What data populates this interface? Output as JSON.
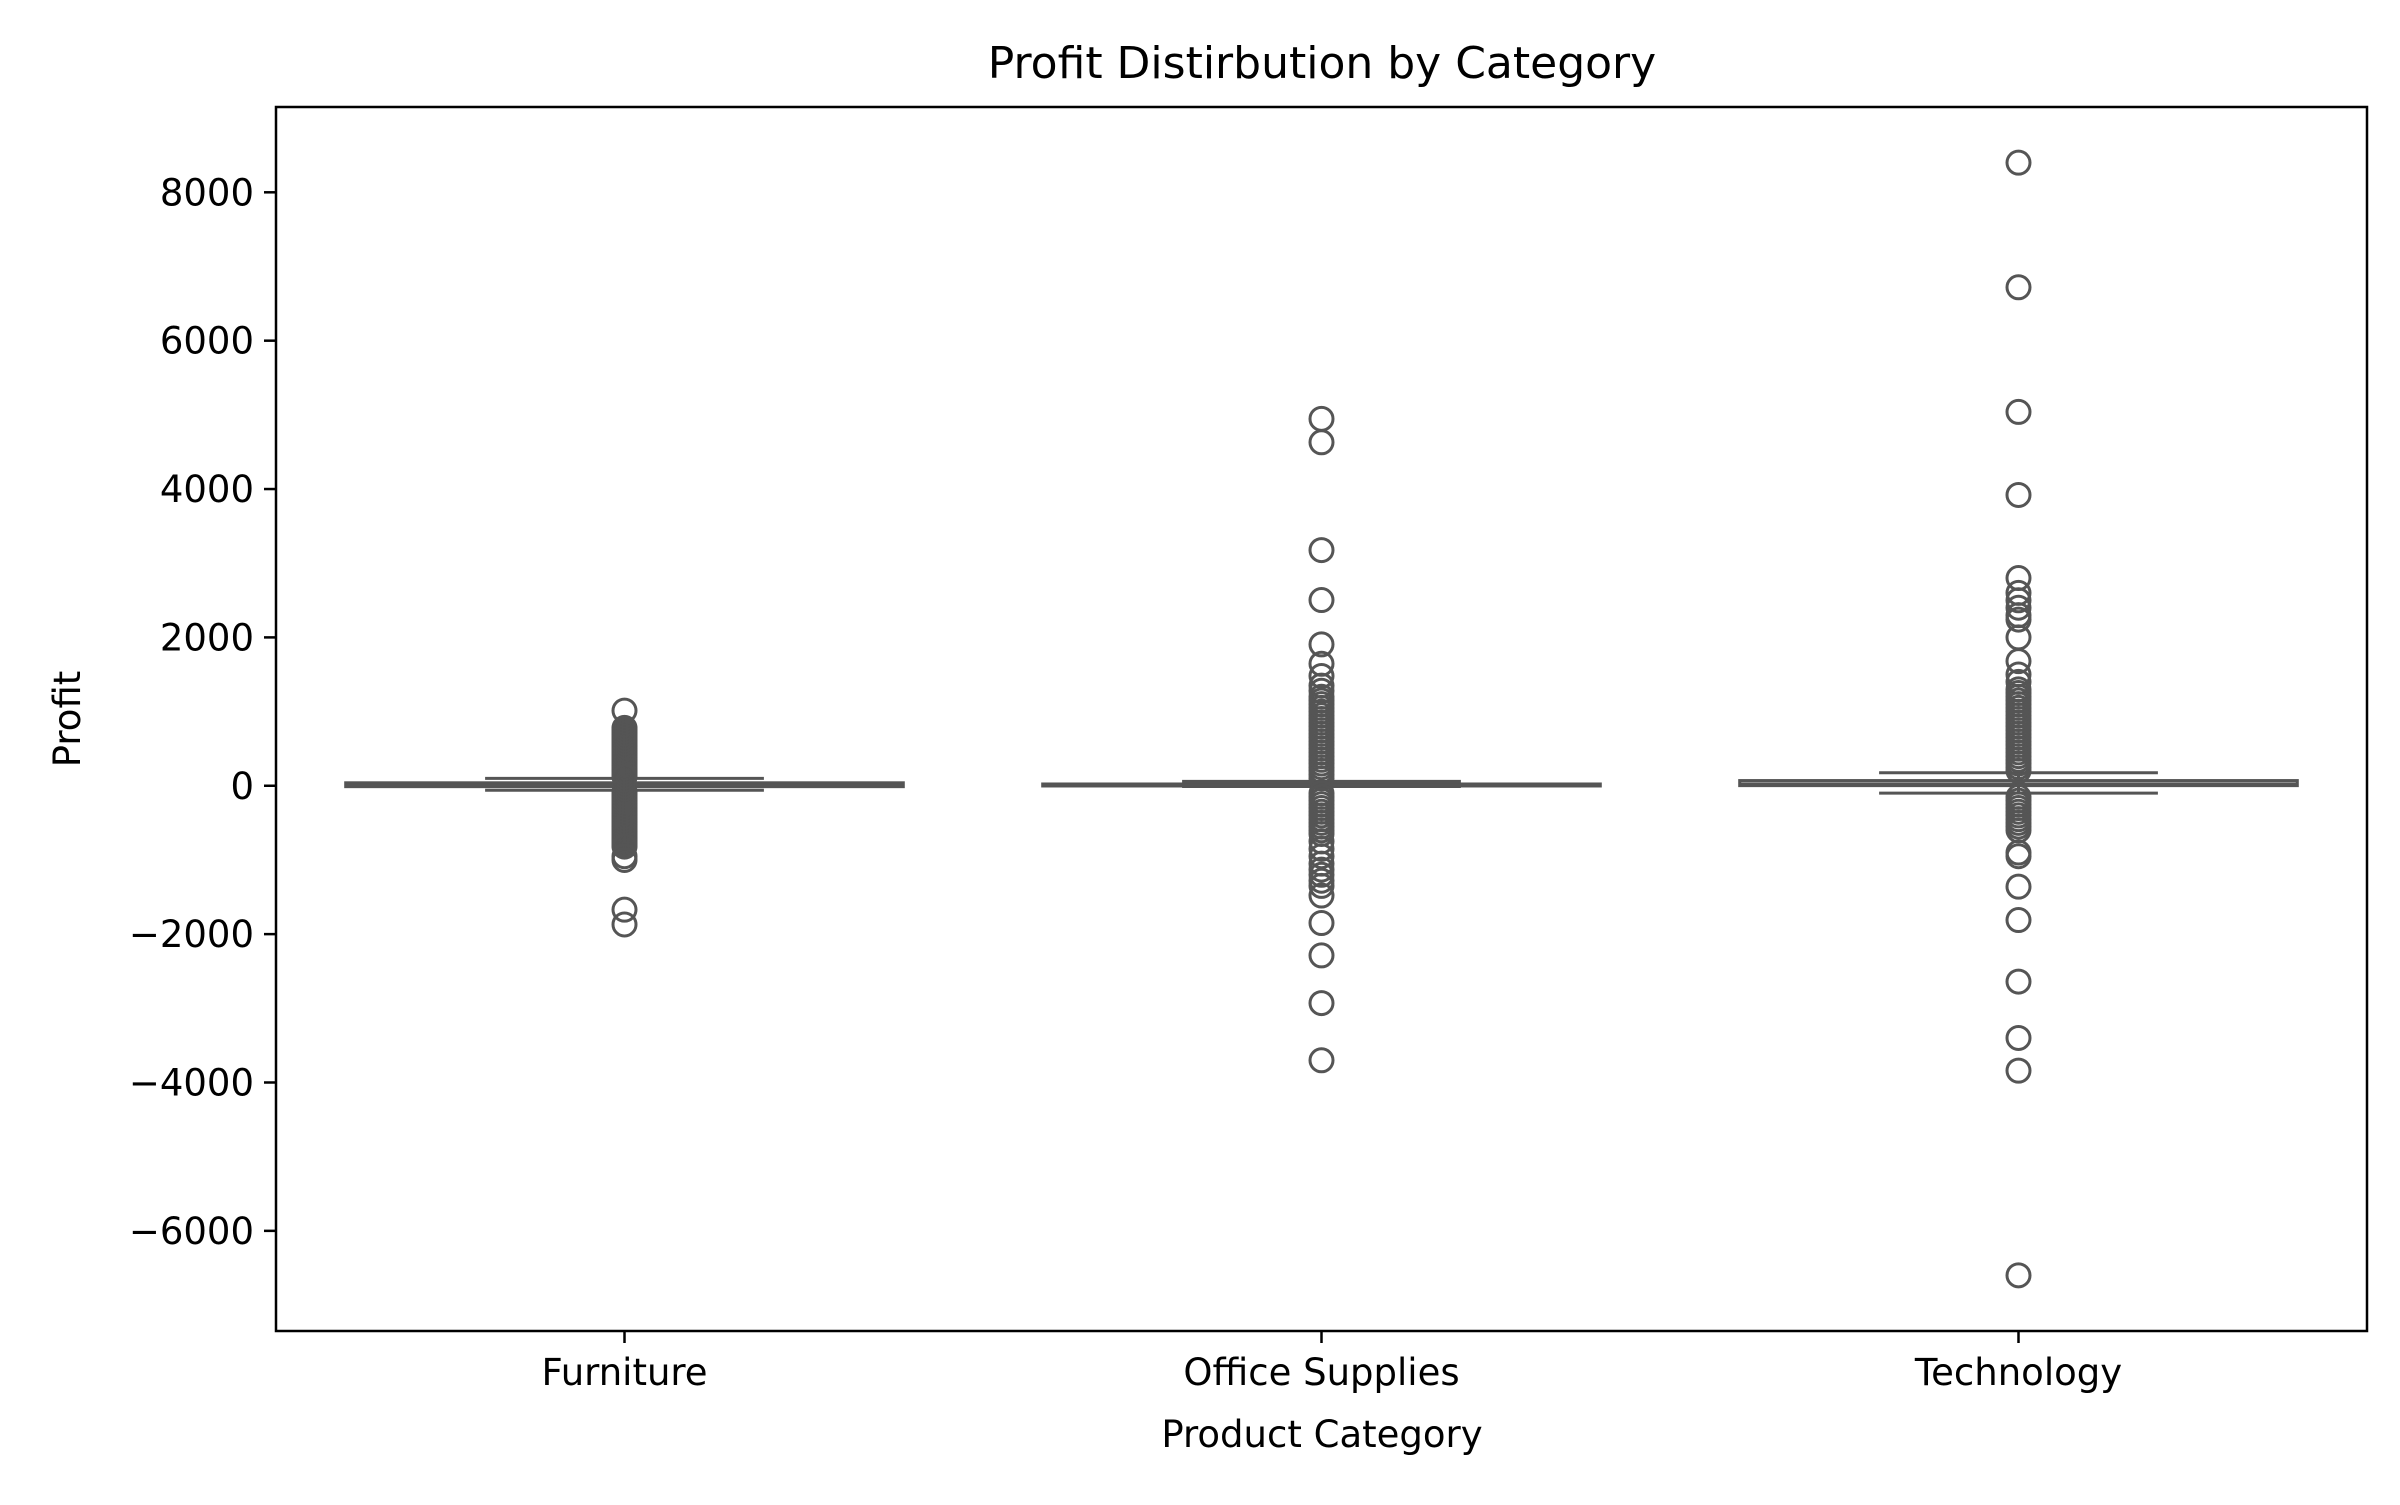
{
  "chart_data": {
    "type": "box",
    "title": "Profit Distirbution by Category",
    "xlabel": "Product Category",
    "ylabel": "Profit",
    "categories": [
      "Furniture",
      "Office Supplies",
      "Technology"
    ],
    "ylim": [
      -7350,
      9150
    ],
    "yticks": [
      8000,
      6000,
      4000,
      2000,
      0,
      -2000,
      -4000,
      -6000
    ],
    "ytick_labels": [
      "8000",
      "6000",
      "4000",
      "2000",
      "0",
      "−2000",
      "−4000",
      "−6000"
    ],
    "grid": false,
    "legend": "none",
    "box_color": "#ffffff",
    "line_color": "#555555",
    "boxes": [
      {
        "category": "Furniture",
        "q1": -12,
        "median": 8,
        "q3": 40,
        "whisker_low": -60,
        "whisker_high": 100,
        "outliers": [
          1013,
          780,
          760,
          740,
          720,
          700,
          680,
          660,
          640,
          620,
          600,
          580,
          560,
          540,
          520,
          500,
          480,
          460,
          440,
          420,
          400,
          380,
          360,
          340,
          320,
          300,
          280,
          260,
          240,
          220,
          200,
          180,
          160,
          140,
          120,
          -80,
          -100,
          -120,
          -140,
          -160,
          -180,
          -200,
          -220,
          -240,
          -260,
          -280,
          -300,
          -320,
          -340,
          -360,
          -380,
          -400,
          -420,
          -440,
          -460,
          -480,
          -500,
          -520,
          -540,
          -560,
          -580,
          -600,
          -620,
          -640,
          -660,
          -680,
          -700,
          -720,
          -740,
          -760,
          -780,
          -800,
          -820,
          -950,
          -1000,
          -1670,
          -1870
        ]
      },
      {
        "category": "Office Supplies",
        "q1": 2,
        "median": 7,
        "q3": 24,
        "whisker_low": -10,
        "whisker_high": 60,
        "outliers": [
          4946,
          4630,
          3177,
          2504,
          1906,
          1644,
          1480,
          1350,
          1280,
          1200,
          1150,
          1100,
          1050,
          1000,
          950,
          900,
          850,
          800,
          750,
          700,
          650,
          600,
          550,
          500,
          450,
          400,
          350,
          300,
          250,
          200,
          150,
          100,
          -100,
          -150,
          -200,
          -250,
          -300,
          -350,
          -400,
          -450,
          -500,
          -550,
          -600,
          -650,
          -750,
          -850,
          -950,
          -1050,
          -1130,
          -1200,
          -1280,
          -1350,
          -1480,
          -1850,
          -2287,
          -2930,
          -3701
        ]
      },
      {
        "category": "Technology",
        "q1": 2,
        "median": 25,
        "q3": 70,
        "whisker_low": -100,
        "whisker_high": 175,
        "outliers": [
          8400,
          6720,
          5040,
          3920,
          2800,
          2600,
          2500,
          2400,
          2300,
          2240,
          2000,
          1680,
          1500,
          1400,
          1300,
          1250,
          1200,
          1150,
          1100,
          1050,
          1000,
          950,
          900,
          850,
          800,
          750,
          700,
          650,
          600,
          550,
          500,
          450,
          400,
          350,
          300,
          250,
          200,
          -150,
          -200,
          -250,
          -300,
          -350,
          -400,
          -450,
          -500,
          -550,
          -600,
          -900,
          -950,
          -1360,
          -1810,
          -2640,
          -3400,
          -3840,
          -6600
        ]
      }
    ]
  }
}
